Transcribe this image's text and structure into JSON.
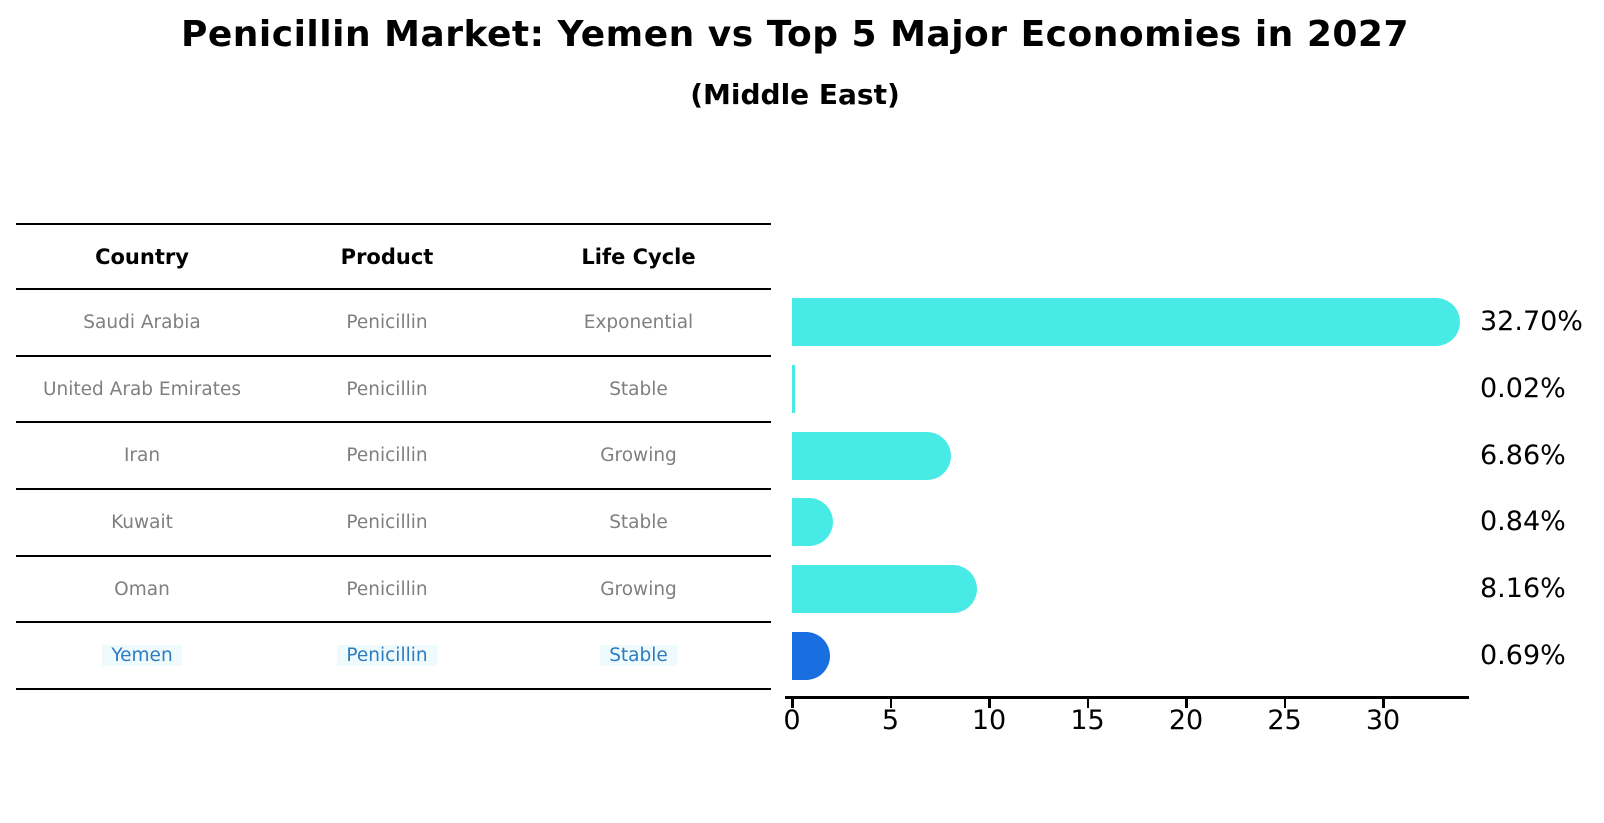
{
  "title": "Penicillin Market: Yemen vs Top 5 Major Economies in 2027",
  "subtitle": "(Middle East)",
  "table": {
    "headers": [
      "Country",
      "Product",
      "Life Cycle"
    ],
    "rows": [
      {
        "country": "Saudi Arabia",
        "product": "Penicillin",
        "life_cycle": "Exponential",
        "highlight": false
      },
      {
        "country": "United Arab Emirates",
        "product": "Penicillin",
        "life_cycle": "Stable",
        "highlight": false
      },
      {
        "country": "Iran",
        "product": "Penicillin",
        "life_cycle": "Growing",
        "highlight": false
      },
      {
        "country": "Kuwait",
        "product": "Penicillin",
        "life_cycle": "Stable",
        "highlight": false
      },
      {
        "country": "Oman",
        "product": "Penicillin",
        "life_cycle": "Growing",
        "highlight": false
      },
      {
        "country": "Yemen",
        "product": "Penicillin",
        "life_cycle": "Stable",
        "highlight": true
      }
    ]
  },
  "chart_data": {
    "type": "bar",
    "orientation": "horizontal",
    "title": "Penicillin Market: Yemen vs Top 5 Major Economies in 2027 (Middle East)",
    "categories": [
      "Saudi Arabia",
      "United Arab Emirates",
      "Iran",
      "Kuwait",
      "Oman",
      "Yemen"
    ],
    "values": [
      32.7,
      0.02,
      6.86,
      0.84,
      8.16,
      0.69
    ],
    "value_labels": [
      "32.70%",
      "0.02%",
      "6.86%",
      "0.84%",
      "8.16%",
      "0.69%"
    ],
    "x_ticks": [
      0,
      5,
      10,
      15,
      20,
      25,
      30
    ],
    "xlim": [
      0,
      34.4
    ],
    "grid": false,
    "legend": "none",
    "bar_color": "#48EAE6",
    "highlight_color": "#1A6FE0",
    "highlight_index": 5,
    "highlight_text_color": "#2E7CBF",
    "row_text_color": "#7F7F7F"
  }
}
